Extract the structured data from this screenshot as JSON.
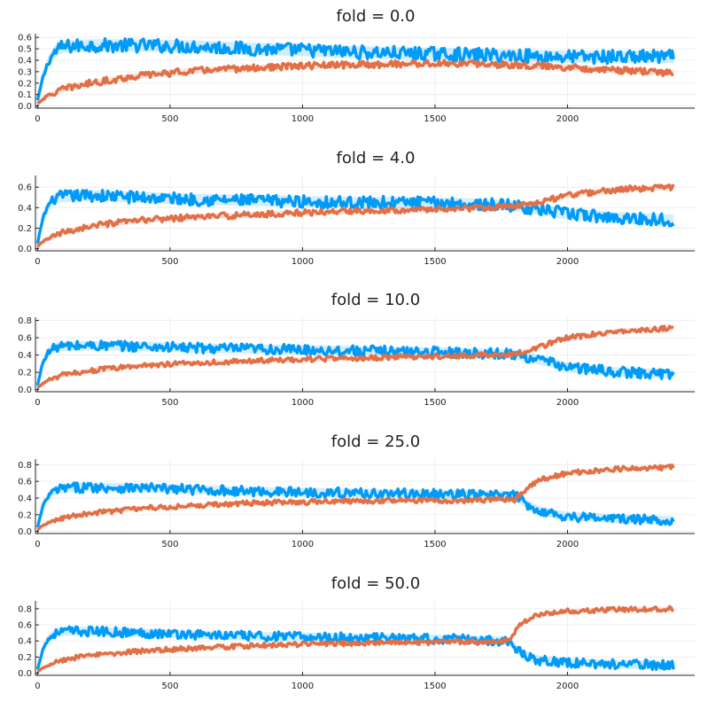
{
  "chart_data": [
    {
      "type": "line",
      "title": "fold = 0.0",
      "fold": 0.0,
      "xlim": [
        0,
        2400
      ],
      "ylim": [
        0,
        0.62
      ],
      "xticks": [
        0,
        500,
        1000,
        1500,
        2000
      ],
      "xtick_labels": [
        "0",
        "500",
        "1000",
        "1500",
        "2000"
      ],
      "yticks": [
        0,
        0.1,
        0.2,
        0.3,
        0.4,
        0.5,
        0.6
      ],
      "ytick_labels": [
        "0.0",
        "0.1",
        "0.2",
        "0.3",
        "0.4",
        "0.5",
        "0.6"
      ],
      "grid": true,
      "legend": "none",
      "series": [
        {
          "color": "#009af9",
          "x": [
            0,
            20,
            40,
            60,
            80,
            100,
            200,
            400,
            600,
            800,
            1000,
            1200,
            1400,
            1600,
            1800,
            2000,
            2200,
            2400
          ],
          "y": [
            0.05,
            0.25,
            0.38,
            0.46,
            0.5,
            0.52,
            0.53,
            0.53,
            0.52,
            0.5,
            0.49,
            0.47,
            0.46,
            0.45,
            0.44,
            0.43,
            0.43,
            0.43
          ],
          "noise": 0.06
        },
        {
          "color": "#e26f46",
          "x": [
            0,
            20,
            40,
            60,
            80,
            100,
            200,
            400,
            600,
            800,
            1000,
            1200,
            1400,
            1600,
            1800,
            2000,
            2200,
            2400
          ],
          "y": [
            0.02,
            0.06,
            0.09,
            0.11,
            0.13,
            0.15,
            0.2,
            0.27,
            0.31,
            0.33,
            0.35,
            0.36,
            0.37,
            0.37,
            0.36,
            0.34,
            0.31,
            0.29
          ],
          "noise": 0.03
        }
      ]
    },
    {
      "type": "line",
      "title": "fold = 4.0",
      "fold": 4.0,
      "xlim": [
        0,
        2400
      ],
      "ylim": [
        0,
        0.7
      ],
      "xticks": [
        0,
        500,
        1000,
        1500,
        2000
      ],
      "xtick_labels": [
        "0",
        "500",
        "1000",
        "1500",
        "2000"
      ],
      "yticks": [
        0,
        0.2,
        0.4,
        0.6
      ],
      "ytick_labels": [
        "0.0",
        "0.2",
        "0.4",
        "0.6"
      ],
      "grid": true,
      "legend": "none",
      "series": [
        {
          "color": "#009af9",
          "x": [
            0,
            20,
            40,
            60,
            80,
            100,
            200,
            400,
            600,
            800,
            1000,
            1200,
            1400,
            1600,
            1800,
            1900,
            2000,
            2200,
            2400
          ],
          "y": [
            0.05,
            0.3,
            0.42,
            0.48,
            0.5,
            0.51,
            0.52,
            0.5,
            0.48,
            0.47,
            0.46,
            0.45,
            0.45,
            0.44,
            0.42,
            0.38,
            0.34,
            0.3,
            0.28
          ],
          "noise": 0.06
        },
        {
          "color": "#e26f46",
          "x": [
            0,
            20,
            40,
            60,
            80,
            100,
            200,
            400,
            600,
            800,
            1000,
            1200,
            1400,
            1600,
            1800,
            1900,
            2000,
            2200,
            2400
          ],
          "y": [
            0.02,
            0.07,
            0.1,
            0.12,
            0.14,
            0.16,
            0.22,
            0.28,
            0.31,
            0.33,
            0.35,
            0.37,
            0.38,
            0.39,
            0.41,
            0.46,
            0.52,
            0.58,
            0.6
          ],
          "noise": 0.03
        }
      ]
    },
    {
      "type": "line",
      "title": "fold = 10.0",
      "fold": 10.0,
      "xlim": [
        0,
        2400
      ],
      "ylim": [
        0,
        0.82
      ],
      "xticks": [
        0,
        500,
        1000,
        1500,
        2000
      ],
      "xtick_labels": [
        "0",
        "500",
        "1000",
        "1500",
        "2000"
      ],
      "yticks": [
        0,
        0.2,
        0.4,
        0.6,
        0.8
      ],
      "ytick_labels": [
        "0.0",
        "0.2",
        "0.4",
        "0.6",
        "0.8"
      ],
      "grid": true,
      "legend": "none",
      "series": [
        {
          "color": "#009af9",
          "x": [
            0,
            20,
            40,
            60,
            80,
            100,
            200,
            400,
            600,
            800,
            1000,
            1200,
            1400,
            1600,
            1800,
            1900,
            2000,
            2200,
            2400
          ],
          "y": [
            0.05,
            0.32,
            0.43,
            0.48,
            0.5,
            0.5,
            0.51,
            0.5,
            0.48,
            0.47,
            0.46,
            0.45,
            0.44,
            0.43,
            0.41,
            0.34,
            0.26,
            0.2,
            0.18
          ],
          "noise": 0.06
        },
        {
          "color": "#e26f46",
          "x": [
            0,
            20,
            40,
            60,
            80,
            100,
            200,
            400,
            600,
            800,
            1000,
            1200,
            1400,
            1600,
            1800,
            1900,
            2000,
            2200,
            2400
          ],
          "y": [
            0.02,
            0.07,
            0.11,
            0.13,
            0.15,
            0.17,
            0.22,
            0.28,
            0.31,
            0.33,
            0.35,
            0.36,
            0.38,
            0.39,
            0.41,
            0.5,
            0.6,
            0.68,
            0.71
          ],
          "noise": 0.03
        }
      ]
    },
    {
      "type": "line",
      "title": "fold = 25.0",
      "fold": 25.0,
      "xlim": [
        0,
        2400
      ],
      "ylim": [
        0,
        0.85
      ],
      "xticks": [
        0,
        500,
        1000,
        1500,
        2000
      ],
      "xtick_labels": [
        "0",
        "500",
        "1000",
        "1500",
        "2000"
      ],
      "yticks": [
        0,
        0.2,
        0.4,
        0.6,
        0.8
      ],
      "ytick_labels": [
        "0.0",
        "0.2",
        "0.4",
        "0.6",
        "0.8"
      ],
      "grid": true,
      "legend": "none",
      "series": [
        {
          "color": "#009af9",
          "x": [
            0,
            20,
            40,
            60,
            80,
            100,
            200,
            400,
            600,
            800,
            1000,
            1200,
            1400,
            1600,
            1800,
            1850,
            1900,
            2000,
            2200,
            2400
          ],
          "y": [
            0.05,
            0.3,
            0.42,
            0.48,
            0.5,
            0.52,
            0.53,
            0.52,
            0.5,
            0.48,
            0.47,
            0.46,
            0.45,
            0.44,
            0.43,
            0.32,
            0.24,
            0.18,
            0.15,
            0.13
          ],
          "noise": 0.06
        },
        {
          "color": "#e26f46",
          "x": [
            0,
            20,
            40,
            60,
            80,
            100,
            200,
            400,
            600,
            800,
            1000,
            1200,
            1400,
            1600,
            1800,
            1850,
            1900,
            2000,
            2200,
            2400
          ],
          "y": [
            0.02,
            0.07,
            0.1,
            0.13,
            0.15,
            0.17,
            0.22,
            0.28,
            0.31,
            0.34,
            0.35,
            0.36,
            0.37,
            0.37,
            0.38,
            0.52,
            0.62,
            0.7,
            0.75,
            0.77
          ],
          "noise": 0.03
        }
      ]
    },
    {
      "type": "line",
      "title": "fold = 50.0",
      "fold": 50.0,
      "xlim": [
        0,
        2400
      ],
      "ylim": [
        0,
        0.88
      ],
      "xticks": [
        0,
        500,
        1000,
        1500,
        2000
      ],
      "xtick_labels": [
        "0",
        "500",
        "1000",
        "1500",
        "2000"
      ],
      "yticks": [
        0,
        0.2,
        0.4,
        0.6,
        0.8
      ],
      "ytick_labels": [
        "0.0",
        "0.2",
        "0.4",
        "0.6",
        "0.8"
      ],
      "grid": true,
      "legend": "none",
      "series": [
        {
          "color": "#009af9",
          "x": [
            0,
            20,
            40,
            60,
            80,
            100,
            200,
            400,
            600,
            800,
            1000,
            1200,
            1400,
            1600,
            1780,
            1820,
            1880,
            2000,
            2200,
            2400
          ],
          "y": [
            0.05,
            0.3,
            0.42,
            0.48,
            0.51,
            0.52,
            0.52,
            0.5,
            0.48,
            0.46,
            0.45,
            0.44,
            0.43,
            0.42,
            0.4,
            0.26,
            0.17,
            0.13,
            0.11,
            0.1
          ],
          "noise": 0.06
        },
        {
          "color": "#e26f46",
          "x": [
            0,
            20,
            40,
            60,
            80,
            100,
            200,
            400,
            600,
            800,
            1000,
            1200,
            1400,
            1600,
            1780,
            1820,
            1880,
            2000,
            2200,
            2400
          ],
          "y": [
            0.02,
            0.07,
            0.1,
            0.13,
            0.15,
            0.17,
            0.22,
            0.28,
            0.31,
            0.34,
            0.36,
            0.37,
            0.38,
            0.39,
            0.4,
            0.6,
            0.72,
            0.77,
            0.79,
            0.8
          ],
          "noise": 0.03
        }
      ]
    }
  ]
}
